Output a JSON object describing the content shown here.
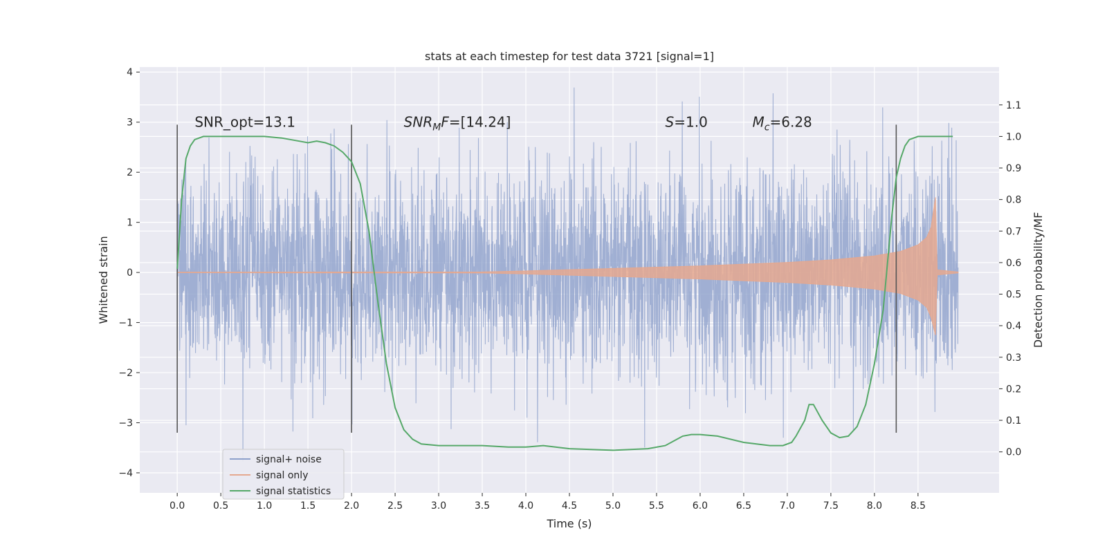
{
  "chart_data": {
    "type": "line",
    "title": "stats at each timestep for test data 3721 [signal=1]",
    "xlabel": "Time (s)",
    "ylabel": "Whitened strain",
    "ylabel_right": "Detection probability/MF",
    "xlim": [
      -0.43,
      9.43
    ],
    "ylim": [
      -4.4,
      4.1
    ],
    "ylim_right": [
      -0.13,
      1.22
    ],
    "x_ticks": [
      "0.0",
      "0.5",
      "1.0",
      "1.5",
      "2.0",
      "2.5",
      "3.0",
      "3.5",
      "4.0",
      "4.5",
      "5.0",
      "5.5",
      "6.0",
      "6.5",
      "7.0",
      "7.5",
      "8.0",
      "8.5"
    ],
    "x_tick_values": [
      0.0,
      0.5,
      1.0,
      1.5,
      2.0,
      2.5,
      3.0,
      3.5,
      4.0,
      4.5,
      5.0,
      5.5,
      6.0,
      6.5,
      7.0,
      7.5,
      8.0,
      8.5
    ],
    "y_ticks": [
      "4",
      "3",
      "2",
      "1",
      "0",
      "−1",
      "−2",
      "−3",
      "−4"
    ],
    "y_tick_values": [
      4,
      3,
      2,
      1,
      0,
      -1,
      -2,
      -3,
      -4
    ],
    "y_right_ticks": [
      "1.1",
      "1.0",
      "0.9",
      "0.8",
      "0.7",
      "0.6",
      "0.5",
      "0.4",
      "0.3",
      "0.2",
      "0.1",
      "0.0"
    ],
    "y_right_tick_values": [
      1.1,
      1.0,
      0.9,
      0.8,
      0.7,
      0.6,
      0.5,
      0.4,
      0.3,
      0.2,
      0.1,
      0.0
    ],
    "vlines": [
      0.0,
      2.0,
      8.25
    ],
    "vline_range": [
      -3.2,
      2.95
    ],
    "annotations": [
      {
        "text": "SNR_opt=13.1",
        "x": 0.2,
        "y": 3.0
      },
      {
        "text": "SNR",
        "sub": "M",
        "suffix": "F=[14.24]",
        "x": 2.6,
        "y": 3.0,
        "italic": true
      },
      {
        "text": "S",
        "suffix": "=1.0",
        "x": 5.6,
        "y": 3.0,
        "italic": true
      },
      {
        "text": "M",
        "sub": "c",
        "suffix": "=6.28",
        "x": 6.6,
        "y": 3.0,
        "italic": true
      }
    ],
    "series": [
      {
        "name": "signal+ noise",
        "color": "#8da0cb",
        "alpha": 0.8,
        "x_range": [
          0.0,
          8.96
        ],
        "typical_amplitude": 1.05,
        "peak_max": 3.8,
        "peak_min": -3.85
      },
      {
        "name": "signal only",
        "color": "#e5a88f",
        "envelope": {
          "x": [
            0.0,
            3.5,
            4.0,
            5.0,
            6.0,
            7.0,
            7.5,
            8.0,
            8.3,
            8.5,
            8.6,
            8.65,
            8.7,
            8.72,
            8.96
          ],
          "y": [
            0.005,
            0.01,
            0.03,
            0.08,
            0.13,
            0.2,
            0.25,
            0.33,
            0.42,
            0.55,
            0.7,
            0.9,
            1.5,
            0.05,
            0.01
          ]
        }
      },
      {
        "name": "signal statistics",
        "color": "#55a868",
        "axis": "right",
        "x": [
          0.0,
          0.05,
          0.1,
          0.15,
          0.2,
          0.3,
          0.4,
          0.6,
          0.8,
          1.0,
          1.2,
          1.4,
          1.5,
          1.6,
          1.7,
          1.8,
          1.9,
          2.0,
          2.1,
          2.2,
          2.3,
          2.4,
          2.5,
          2.6,
          2.7,
          2.8,
          3.0,
          3.2,
          3.5,
          3.8,
          4.0,
          4.2,
          4.5,
          5.0,
          5.4,
          5.6,
          5.8,
          5.9,
          6.0,
          6.2,
          6.5,
          6.8,
          6.95,
          7.05,
          7.1,
          7.2,
          7.25,
          7.3,
          7.4,
          7.5,
          7.6,
          7.7,
          7.8,
          7.9,
          8.0,
          8.1,
          8.15,
          8.2,
          8.25,
          8.3,
          8.35,
          8.4,
          8.5,
          8.6,
          8.8,
          8.9
        ],
        "values": [
          0.58,
          0.8,
          0.93,
          0.97,
          0.99,
          1.0,
          1.0,
          1.0,
          1.0,
          1.0,
          0.995,
          0.985,
          0.98,
          0.985,
          0.98,
          0.97,
          0.95,
          0.92,
          0.85,
          0.7,
          0.48,
          0.28,
          0.14,
          0.07,
          0.04,
          0.025,
          0.02,
          0.02,
          0.02,
          0.015,
          0.015,
          0.02,
          0.01,
          0.005,
          0.01,
          0.02,
          0.05,
          0.055,
          0.055,
          0.05,
          0.03,
          0.02,
          0.02,
          0.03,
          0.05,
          0.1,
          0.15,
          0.15,
          0.1,
          0.06,
          0.045,
          0.05,
          0.08,
          0.15,
          0.28,
          0.45,
          0.6,
          0.75,
          0.87,
          0.93,
          0.97,
          0.99,
          1.0,
          1.0,
          1.0,
          1.0
        ]
      }
    ],
    "legend_position": "lower-left",
    "grid": true
  }
}
